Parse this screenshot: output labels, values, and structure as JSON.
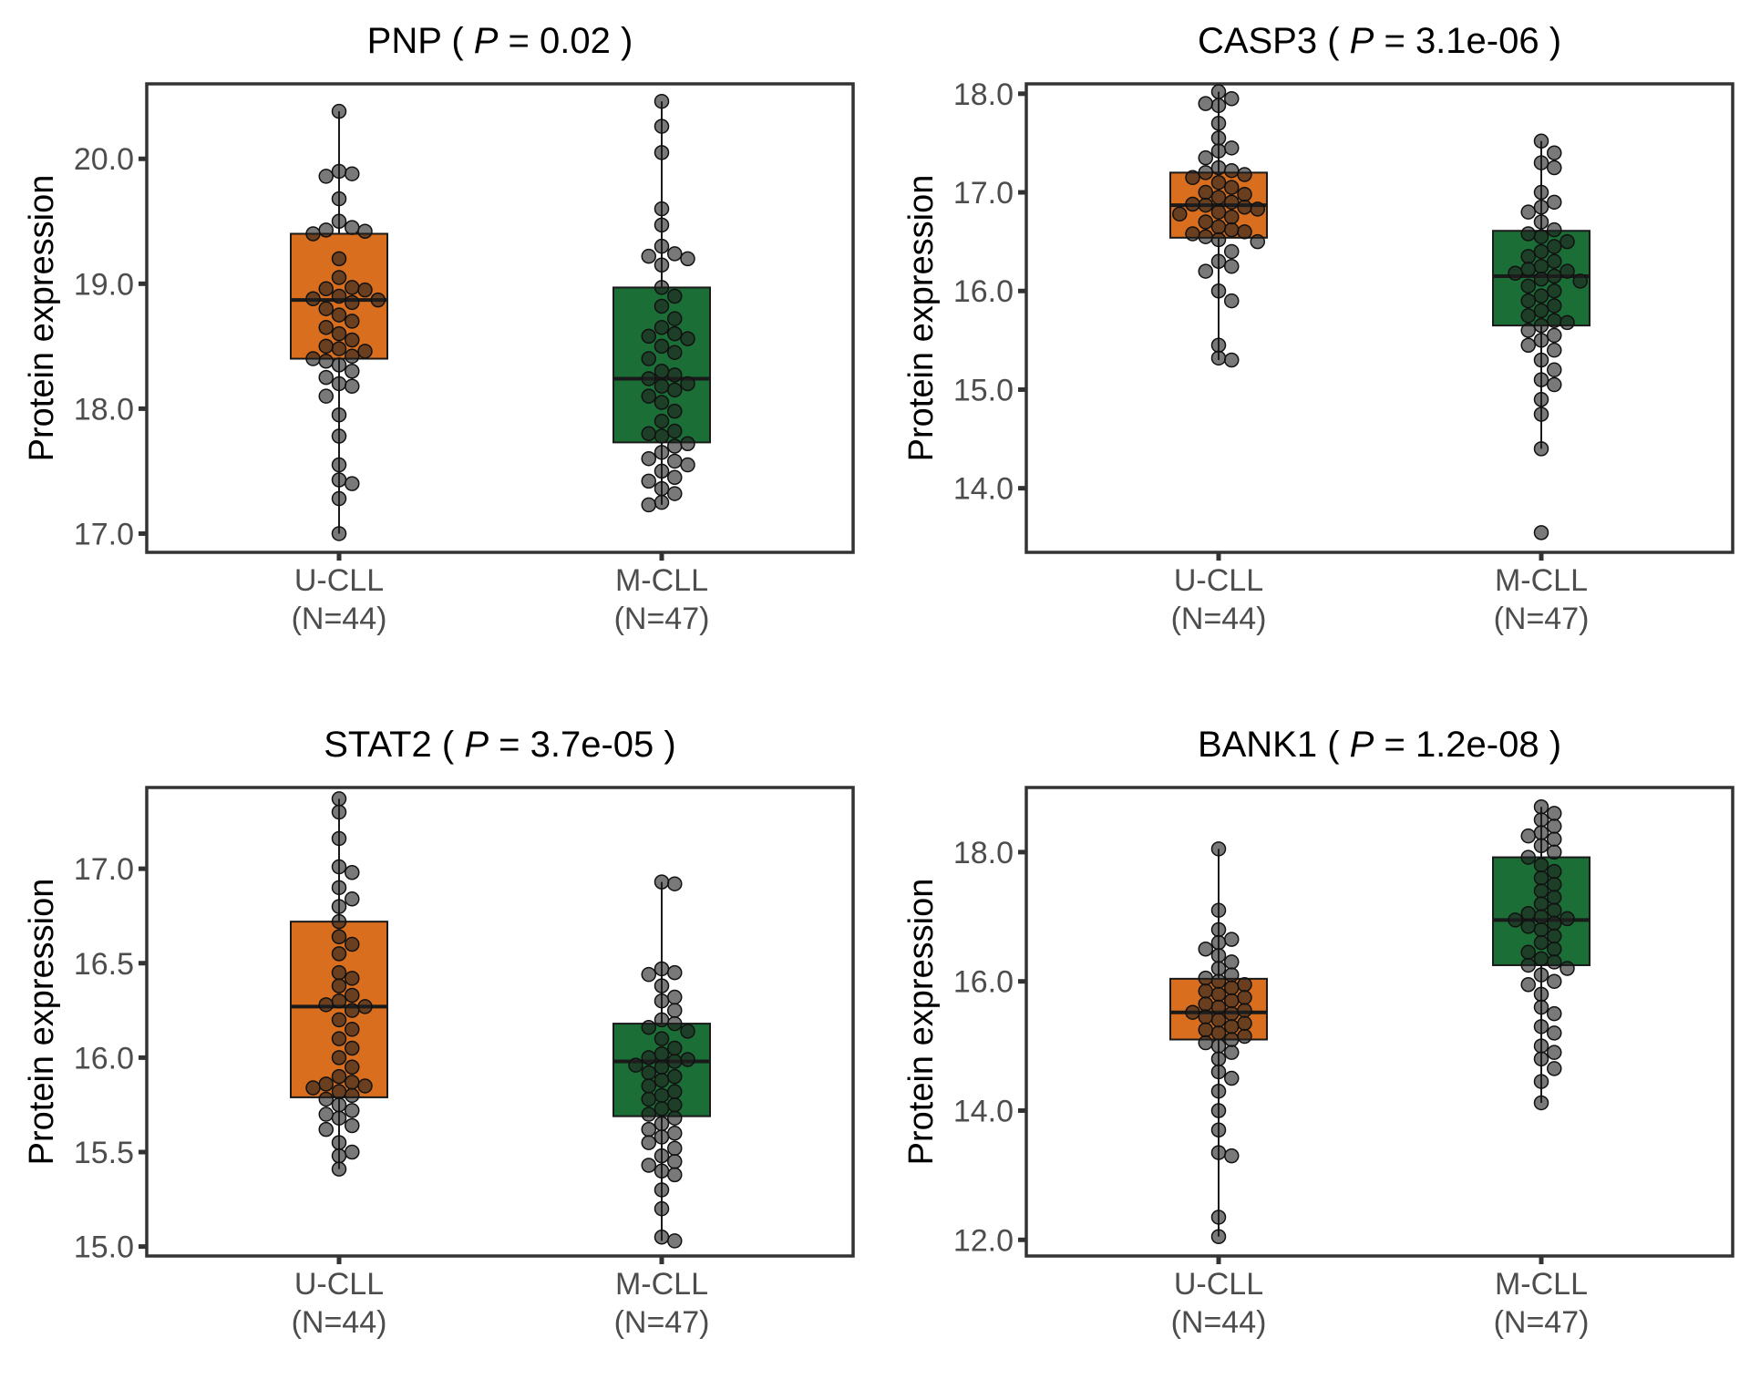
{
  "figure": {
    "colors": {
      "U-CLL": "#d96f1e",
      "M-CLL": "#1b6e36",
      "points": "#1f1f1f",
      "frame": "#333333",
      "tick_text": "#4d4d4d"
    }
  },
  "chart_data": [
    {
      "type": "box",
      "gene": "PNP",
      "p_value": "0.02",
      "ylabel": "Protein expression",
      "ylim": [
        16.85,
        20.6
      ],
      "yticks": [
        "17.0",
        "18.0",
        "19.0",
        "20.0"
      ],
      "categories": [
        "U-CLL",
        "M-CLL"
      ],
      "category_counts": [
        "(N=44)",
        "(N=47)"
      ],
      "boxes": [
        {
          "group": "U-CLL",
          "q1": 18.4,
          "median": 18.87,
          "q3": 19.4,
          "whisker_low": 17.0,
          "whisker_high": 20.38
        },
        {
          "group": "M-CLL",
          "q1": 17.73,
          "median": 18.24,
          "q3": 18.97,
          "whisker_low": 17.23,
          "whisker_high": 20.46
        }
      ],
      "points": {
        "U-CLL": [
          20.38,
          19.9,
          19.88,
          19.86,
          19.68,
          19.5,
          19.45,
          19.43,
          19.42,
          19.4,
          19.2,
          19.05,
          18.97,
          18.96,
          18.95,
          18.9,
          18.88,
          18.87,
          18.85,
          18.8,
          18.75,
          18.7,
          18.65,
          18.6,
          18.55,
          18.5,
          18.48,
          18.46,
          18.42,
          18.4,
          18.38,
          18.35,
          18.3,
          18.25,
          18.2,
          18.18,
          18.1,
          17.95,
          17.78,
          17.55,
          17.43,
          17.4,
          17.28,
          17.0
        ],
        "M-CLL": [
          20.46,
          20.26,
          20.05,
          19.6,
          19.47,
          19.3,
          19.24,
          19.22,
          19.2,
          19.15,
          18.97,
          18.9,
          18.82,
          18.72,
          18.65,
          18.6,
          18.58,
          18.56,
          18.5,
          18.45,
          18.4,
          18.3,
          18.27,
          18.24,
          18.2,
          18.18,
          18.15,
          18.1,
          18.05,
          17.98,
          17.9,
          17.82,
          17.8,
          17.78,
          17.72,
          17.7,
          17.65,
          17.6,
          17.58,
          17.55,
          17.5,
          17.45,
          17.42,
          17.36,
          17.32,
          17.25,
          17.23
        ]
      }
    },
    {
      "type": "box",
      "gene": "CASP3",
      "p_value": "3.1e-06",
      "ylabel": "Protein expression",
      "ylim": [
        13.35,
        18.1
      ],
      "yticks": [
        "14.0",
        "15.0",
        "16.0",
        "17.0",
        "18.0"
      ],
      "categories": [
        "U-CLL",
        "M-CLL"
      ],
      "category_counts": [
        "(N=44)",
        "(N=47)"
      ],
      "boxes": [
        {
          "group": "U-CLL",
          "q1": 16.54,
          "median": 16.87,
          "q3": 17.2,
          "whisker_low": 15.3,
          "whisker_high": 18.02
        },
        {
          "group": "M-CLL",
          "q1": 15.65,
          "median": 16.15,
          "q3": 16.61,
          "whisker_low": 14.4,
          "whisker_high": 17.52
        }
      ],
      "points": {
        "U-CLL": [
          18.02,
          17.95,
          17.9,
          17.88,
          17.7,
          17.55,
          17.45,
          17.42,
          17.35,
          17.25,
          17.22,
          17.2,
          17.18,
          17.15,
          17.1,
          17.05,
          17.0,
          16.98,
          16.95,
          16.9,
          16.88,
          16.87,
          16.85,
          16.83,
          16.8,
          16.78,
          16.75,
          16.7,
          16.65,
          16.62,
          16.6,
          16.58,
          16.55,
          16.52,
          16.5,
          16.4,
          16.3,
          16.25,
          16.2,
          16.0,
          15.9,
          15.45,
          15.32,
          15.3
        ],
        "M-CLL": [
          17.52,
          17.4,
          17.3,
          17.25,
          17.0,
          16.9,
          16.85,
          16.8,
          16.7,
          16.62,
          16.58,
          16.55,
          16.5,
          16.45,
          16.4,
          16.35,
          16.3,
          16.25,
          16.22,
          16.2,
          16.18,
          16.15,
          16.12,
          16.1,
          16.05,
          16.0,
          15.95,
          15.9,
          15.85,
          15.8,
          15.75,
          15.7,
          15.68,
          15.65,
          15.6,
          15.55,
          15.5,
          15.45,
          15.4,
          15.3,
          15.2,
          15.1,
          15.05,
          14.9,
          14.75,
          14.4,
          13.55
        ]
      }
    },
    {
      "type": "box",
      "gene": "STAT2",
      "p_value": "3.7e-05",
      "ylabel": "Protein expression",
      "ylim": [
        14.95,
        17.43
      ],
      "yticks": [
        "15.0",
        "15.5",
        "16.0",
        "16.5",
        "17.0"
      ],
      "categories": [
        "U-CLL",
        "M-CLL"
      ],
      "category_counts": [
        "(N=44)",
        "(N=47)"
      ],
      "boxes": [
        {
          "group": "U-CLL",
          "q1": 15.79,
          "median": 16.27,
          "q3": 16.72,
          "whisker_low": 15.41,
          "whisker_high": 17.37
        },
        {
          "group": "M-CLL",
          "q1": 15.69,
          "median": 15.98,
          "q3": 16.18,
          "whisker_low": 15.03,
          "whisker_high": 16.93
        }
      ],
      "points": {
        "U-CLL": [
          17.37,
          17.3,
          17.16,
          17.01,
          16.98,
          16.9,
          16.84,
          16.8,
          16.72,
          16.64,
          16.6,
          16.55,
          16.45,
          16.42,
          16.38,
          16.33,
          16.3,
          16.28,
          16.27,
          16.25,
          16.2,
          16.15,
          16.1,
          16.05,
          16.0,
          15.95,
          15.9,
          15.87,
          15.86,
          15.85,
          15.84,
          15.82,
          15.8,
          15.78,
          15.75,
          15.72,
          15.7,
          15.68,
          15.64,
          15.62,
          15.55,
          15.5,
          15.48,
          15.41
        ],
        "M-CLL": [
          16.93,
          16.92,
          16.47,
          16.45,
          16.44,
          16.38,
          16.32,
          16.3,
          16.25,
          16.2,
          16.18,
          16.16,
          16.14,
          16.1,
          16.05,
          16.02,
          16.0,
          15.99,
          15.98,
          15.96,
          15.95,
          15.92,
          15.9,
          15.88,
          15.85,
          15.82,
          15.8,
          15.78,
          15.75,
          15.73,
          15.7,
          15.68,
          15.65,
          15.62,
          15.6,
          15.58,
          15.55,
          15.52,
          15.48,
          15.45,
          15.43,
          15.4,
          15.38,
          15.3,
          15.2,
          15.05,
          15.03
        ]
      }
    },
    {
      "type": "box",
      "gene": "BANK1",
      "p_value": "1.2e-08",
      "ylabel": "Protein expression",
      "ylim": [
        11.75,
        19.0
      ],
      "yticks": [
        "12.0",
        "14.0",
        "16.0",
        "18.0"
      ],
      "categories": [
        "U-CLL",
        "M-CLL"
      ],
      "category_counts": [
        "(N=44)",
        "(N=47)"
      ],
      "boxes": [
        {
          "group": "U-CLL",
          "q1": 15.1,
          "median": 15.52,
          "q3": 16.04,
          "whisker_low": 12.05,
          "whisker_high": 18.05
        },
        {
          "group": "M-CLL",
          "q1": 16.25,
          "median": 16.95,
          "q3": 17.92,
          "whisker_low": 14.12,
          "whisker_high": 18.7
        }
      ],
      "points": {
        "U-CLL": [
          18.05,
          17.1,
          16.8,
          16.65,
          16.6,
          16.5,
          16.4,
          16.3,
          16.2,
          16.1,
          16.05,
          16.0,
          15.95,
          15.9,
          15.85,
          15.8,
          15.75,
          15.7,
          15.65,
          15.6,
          15.55,
          15.52,
          15.5,
          15.45,
          15.4,
          15.35,
          15.3,
          15.25,
          15.2,
          15.15,
          15.1,
          15.05,
          15.0,
          14.9,
          14.8,
          14.6,
          14.5,
          14.3,
          14.0,
          13.7,
          13.35,
          13.3,
          12.35,
          12.05
        ],
        "M-CLL": [
          18.7,
          18.6,
          18.5,
          18.4,
          18.3,
          18.25,
          18.2,
          18.1,
          18.0,
          17.92,
          17.8,
          17.7,
          17.6,
          17.5,
          17.4,
          17.3,
          17.2,
          17.1,
          17.05,
          17.0,
          16.97,
          16.95,
          16.9,
          16.85,
          16.8,
          16.7,
          16.6,
          16.5,
          16.45,
          16.35,
          16.3,
          16.25,
          16.2,
          16.1,
          16.0,
          15.95,
          15.8,
          15.6,
          15.5,
          15.3,
          15.2,
          15.0,
          14.9,
          14.8,
          14.65,
          14.45,
          14.12
        ]
      }
    }
  ]
}
